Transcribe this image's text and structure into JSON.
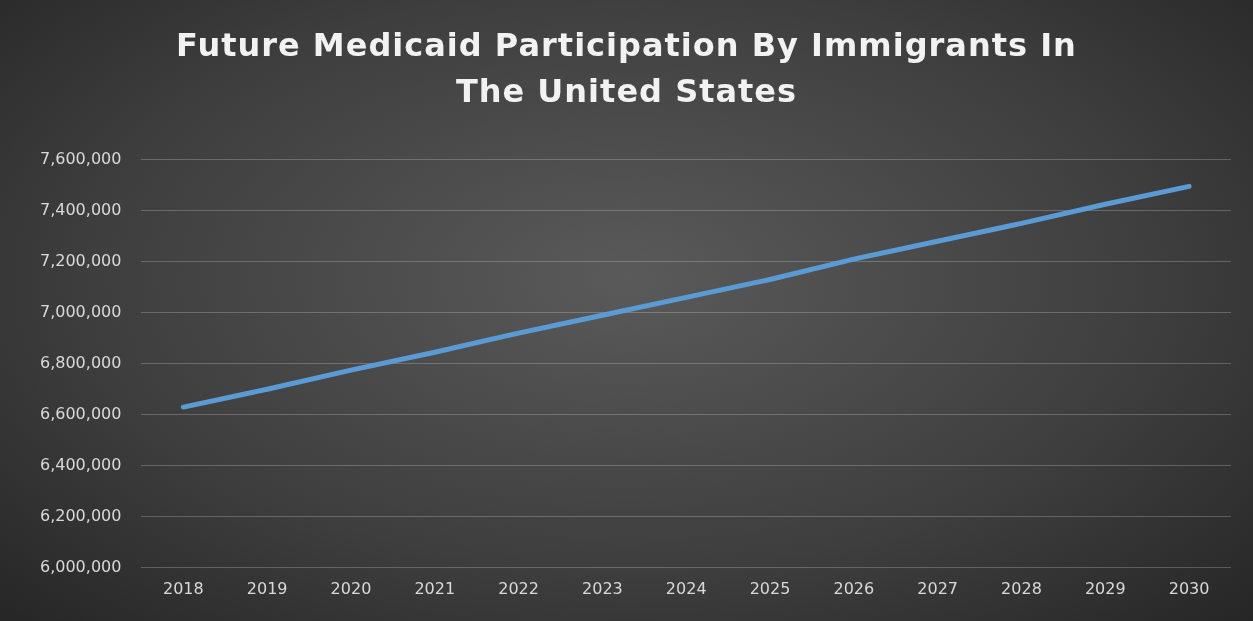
{
  "chart_data": {
    "type": "line",
    "title": "Future Medicaid Participation By Immigrants In The United States",
    "categories": [
      "2018",
      "2019",
      "2020",
      "2021",
      "2022",
      "2023",
      "2024",
      "2025",
      "2026",
      "2027",
      "2028",
      "2029",
      "2030"
    ],
    "series": [
      {
        "color": "#5b9bd5",
        "values": [
          6630000,
          6700000,
          6775000,
          6845000,
          6920000,
          6990000,
          7060000,
          7130000,
          7210000,
          7280000,
          7350000,
          7425000,
          7495000
        ]
      }
    ],
    "ylim": [
      6000000,
      7600000
    ],
    "yticks": [
      {
        "value": 6000000,
        "label": "6,000,000"
      },
      {
        "value": 6200000,
        "label": "6,200,000"
      },
      {
        "value": 6400000,
        "label": "6,400,000"
      },
      {
        "value": 6600000,
        "label": "6,600,000"
      },
      {
        "value": 6800000,
        "label": "6,800,000"
      },
      {
        "value": 7000000,
        "label": "7,000,000"
      },
      {
        "value": 7200000,
        "label": "7,200,000"
      },
      {
        "value": 7400000,
        "label": "7,400,000"
      },
      {
        "value": 7600000,
        "label": "7,600,000"
      }
    ],
    "grid": "y",
    "legend": false,
    "marker": "none",
    "line_style": "solid"
  }
}
